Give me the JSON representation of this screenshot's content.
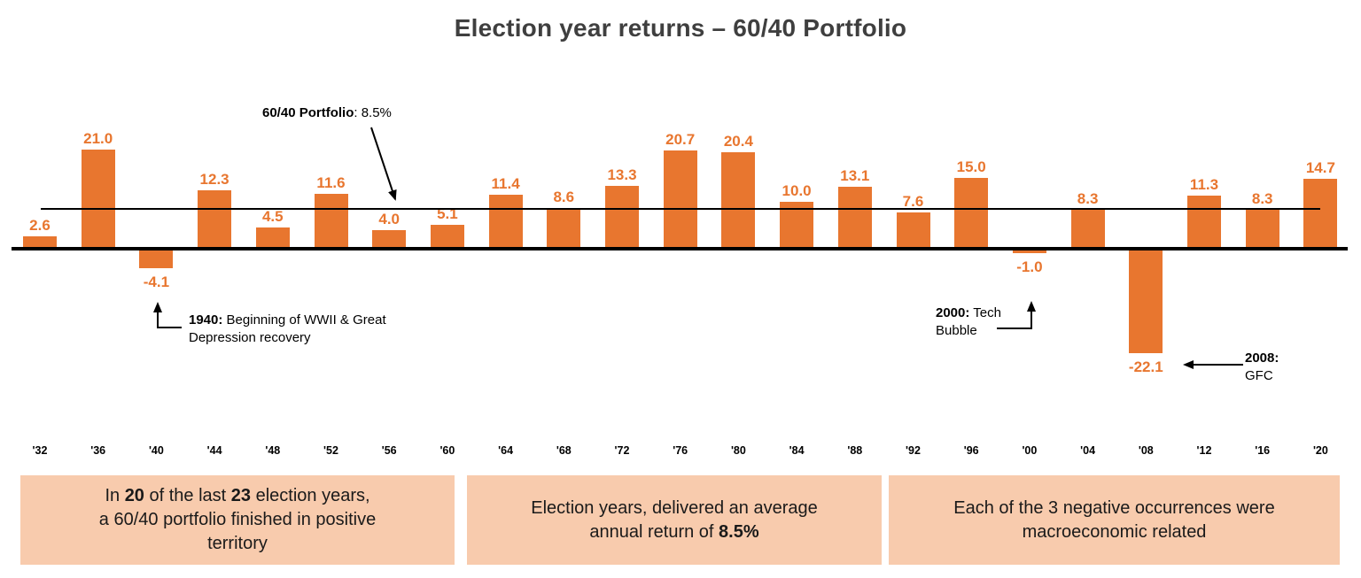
{
  "title": "Election year returns – 60/40 Portfolio",
  "colors": {
    "bar": "#E8762F",
    "box_bg": "#F8CBAD",
    "title_text": "#3f3f3f",
    "line": "#000000"
  },
  "chart_data": {
    "type": "bar",
    "title": "Election year returns – 60/40 Portfolio",
    "categories": [
      "'32",
      "'36",
      "'40",
      "'44",
      "'48",
      "'52",
      "'56",
      "'60",
      "'64",
      "'68",
      "'72",
      "'76",
      "'80",
      "'84",
      "'88",
      "'92",
      "'96",
      "'00",
      "'04",
      "'08",
      "'12",
      "'16",
      "'20"
    ],
    "values": [
      2.6,
      21.0,
      -4.1,
      12.3,
      4.5,
      11.6,
      4.0,
      5.1,
      11.4,
      8.6,
      13.3,
      20.7,
      20.4,
      10.0,
      13.1,
      7.6,
      15.0,
      -1.0,
      8.3,
      -22.1,
      11.3,
      8.3,
      14.7
    ],
    "average_line_value": 8.5,
    "xlabel": "",
    "ylabel": "",
    "grid": false,
    "legend": false
  },
  "annotations": {
    "average": {
      "bold": "60/40 Portfolio",
      "rest": ": 8.5%"
    },
    "y1940": {
      "bold": "1940:",
      "rest": " Beginning of WWII & Great\nDepression recovery"
    },
    "y2000": {
      "bold": "2000:",
      "rest": " Tech\nBubble"
    },
    "y2008": {
      "bold": "2008:",
      "rest": "\nGFC"
    }
  },
  "takeaways": [
    {
      "parts": [
        {
          "text": "In ",
          "bold": false
        },
        {
          "text": "20",
          "bold": true
        },
        {
          "text": " of the last ",
          "bold": false
        },
        {
          "text": "23",
          "bold": true
        },
        {
          "text": " election years,\na 60/40 portfolio finished in positive\nterritory",
          "bold": false
        }
      ]
    },
    {
      "parts": [
        {
          "text": "Election years, delivered an average\nannual return of ",
          "bold": false
        },
        {
          "text": "8.5%",
          "bold": true
        }
      ]
    },
    {
      "parts": [
        {
          "text": "Each of the 3 negative occurrences were\nmacroeconomic related",
          "bold": false
        }
      ]
    }
  ]
}
